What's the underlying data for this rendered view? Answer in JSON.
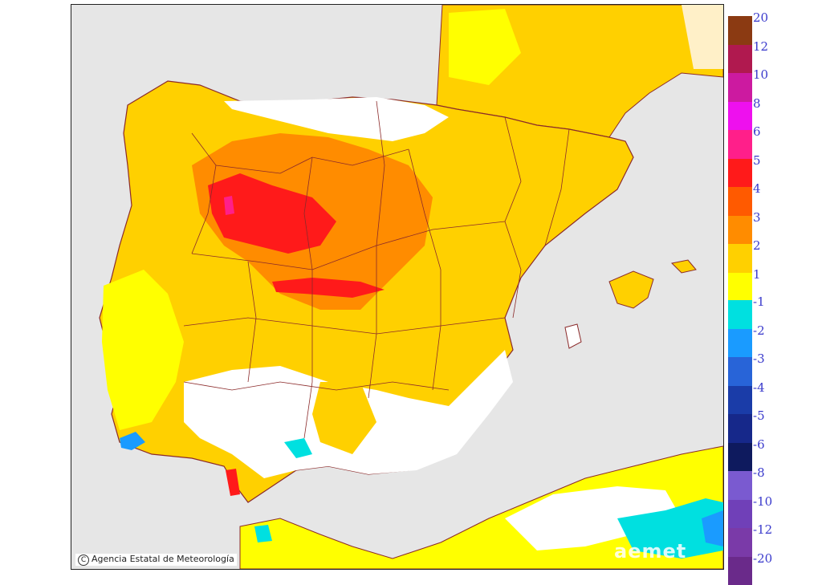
{
  "credit": "Agencia Estatal de Meteorología",
  "credit_symbol": "C",
  "watermark": "aemet",
  "legend": {
    "warm": [
      {
        "label": "20",
        "color": "#8b3a12"
      },
      {
        "label": "12",
        "color": "#b0194f"
      },
      {
        "label": "10",
        "color": "#cc1aa0"
      },
      {
        "label": "8",
        "color": "#ee10ee"
      },
      {
        "label": "6",
        "color": "#ff1f8a"
      },
      {
        "label": "5",
        "color": "#ff1a1a"
      },
      {
        "label": "4",
        "color": "#ff5a00"
      },
      {
        "label": "3",
        "color": "#ff8c00"
      },
      {
        "label": "2",
        "color": "#ffd000"
      },
      {
        "label": "1",
        "color": "#ffff00"
      }
    ],
    "cold": [
      {
        "label": "-1",
        "color": "#00e0e0"
      },
      {
        "label": "-2",
        "color": "#1a9bff"
      },
      {
        "label": "-3",
        "color": "#2864d8"
      },
      {
        "label": "-4",
        "color": "#1a3ca8"
      },
      {
        "label": "-5",
        "color": "#16288a"
      },
      {
        "label": "-6",
        "color": "#0e1a5e"
      },
      {
        "label": "-8",
        "color": "#7a5ad0"
      },
      {
        "label": "-10",
        "color": "#7040b8"
      },
      {
        "label": "-12",
        "color": "#7a3aa8"
      },
      {
        "label": "-20",
        "color": "#6a2a8a"
      }
    ]
  },
  "colors": {
    "sea": "#e6e6e6",
    "neutral": "#ffffff",
    "border": "#8b2a2a"
  }
}
